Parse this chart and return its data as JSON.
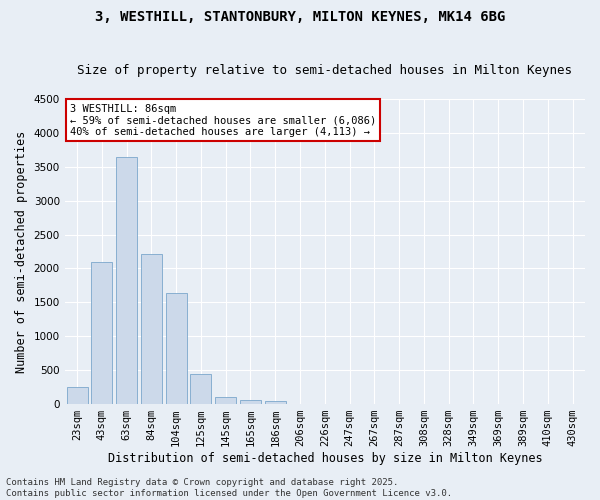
{
  "title1": "3, WESTHILL, STANTONBURY, MILTON KEYNES, MK14 6BG",
  "title2": "Size of property relative to semi-detached houses in Milton Keynes",
  "xlabel": "Distribution of semi-detached houses by size in Milton Keynes",
  "ylabel": "Number of semi-detached properties",
  "categories": [
    "23sqm",
    "43sqm",
    "63sqm",
    "84sqm",
    "104sqm",
    "125sqm",
    "145sqm",
    "165sqm",
    "186sqm",
    "206sqm",
    "226sqm",
    "247sqm",
    "267sqm",
    "287sqm",
    "308sqm",
    "328sqm",
    "349sqm",
    "369sqm",
    "389sqm",
    "410sqm",
    "430sqm"
  ],
  "values": [
    250,
    2100,
    3650,
    2220,
    1640,
    450,
    105,
    60,
    40,
    0,
    0,
    0,
    0,
    0,
    0,
    0,
    0,
    0,
    0,
    0,
    0
  ],
  "bar_fill": "#ccd9ea",
  "bar_edge": "#7ba7cc",
  "annotation_text": "3 WESTHILL: 86sqm\n← 59% of semi-detached houses are smaller (6,086)\n40% of semi-detached houses are larger (4,113) →",
  "ann_box_fc": "#ffffff",
  "ann_box_ec": "#cc0000",
  "ylim": [
    0,
    4500
  ],
  "yticks": [
    0,
    500,
    1000,
    1500,
    2000,
    2500,
    3000,
    3500,
    4000,
    4500
  ],
  "footnote": "Contains HM Land Registry data © Crown copyright and database right 2025.\nContains public sector information licensed under the Open Government Licence v3.0.",
  "bg_color": "#e8eef5",
  "grid_color": "#ffffff",
  "title_fontsize": 10,
  "subtitle_fontsize": 9,
  "tick_fontsize": 7.5,
  "ylabel_fontsize": 8.5,
  "xlabel_fontsize": 8.5,
  "ann_fontsize": 7.5,
  "footnote_fontsize": 6.5
}
